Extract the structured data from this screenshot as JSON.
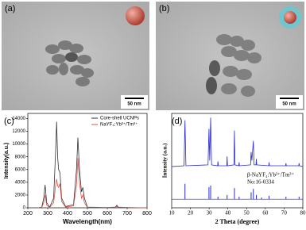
{
  "images": [
    {
      "label": "(a)",
      "scale_bar": "50 nm"
    },
    {
      "label": "(b)",
      "scale_bar": "50 nm"
    }
  ],
  "chart_data": [
    {
      "type": "line",
      "label": "(c)",
      "xlabel": "Wavelength(nm)",
      "ylabel": "Intensity(a.u.)",
      "x": [
        250,
        270,
        280,
        287,
        295,
        310,
        330,
        340,
        345,
        350,
        355,
        362,
        370,
        390,
        430,
        445,
        452,
        460,
        470,
        477,
        485,
        500,
        600,
        640,
        648,
        655,
        700,
        800
      ],
      "series": [
        {
          "name": "Core-shell UCNPs",
          "color": "#333333",
          "values": [
            0,
            100,
            1500,
            3600,
            800,
            100,
            1500,
            9000,
            13500,
            8000,
            6000,
            5500,
            1500,
            200,
            500,
            6000,
            11000,
            6000,
            2500,
            3200,
            1500,
            100,
            50,
            100,
            400,
            100,
            50,
            0
          ]
        },
        {
          "name": "NaYF₄:Yb³⁺/Tm³⁺",
          "color": "#e05050",
          "values": [
            0,
            50,
            800,
            2000,
            400,
            50,
            800,
            3500,
            4500,
            3500,
            3200,
            3800,
            1000,
            100,
            300,
            3500,
            7800,
            4000,
            1500,
            2000,
            800,
            50,
            30,
            50,
            200,
            50,
            30,
            0
          ]
        }
      ],
      "xlim": [
        200,
        800
      ],
      "xticks": [
        200,
        300,
        400,
        500,
        600,
        700,
        800
      ],
      "ylim": [
        0,
        14800
      ],
      "yticks": [
        0,
        2000,
        4000,
        6000,
        8000,
        10000,
        12000,
        14000
      ],
      "legend": "upper right"
    },
    {
      "type": "line",
      "label": "(d)",
      "xlabel": "2 Theta (degree)",
      "ylabel": "Intensity (a.u.)",
      "annotations": [
        "β-NaYF₄:Yb³⁺/Tm³⁺",
        "No:16-0334"
      ],
      "series": [
        {
          "color": "#2b2bd0",
          "x": [
            10,
            16.6,
            17.1,
            17.6,
            29.4,
            29.9,
            30.3,
            30.8,
            31.3,
            34.5,
            34.7,
            34.9,
            39.4,
            39.6,
            39.8,
            43.2,
            43.5,
            43.8,
            45.8,
            46,
            46.2,
            52.1,
            52.4,
            52.8,
            53.6,
            54,
            55,
            55.2,
            55.4,
            61.8,
            62,
            62.2,
            70.8,
            71,
            71.2,
            77.8,
            78,
            78.2,
            80
          ],
          "values": [
            38,
            39,
            92,
            39,
            40,
            82,
            45,
            95,
            40,
            39,
            44,
            39,
            39,
            50,
            39,
            40,
            80,
            40,
            39,
            43,
            39,
            40,
            55,
            45,
            68,
            40,
            40,
            47,
            40,
            39,
            43,
            39,
            39,
            42,
            39,
            39,
            42,
            39,
            38
          ]
        },
        {
          "color": "#2b2bd0",
          "style": "stem",
          "x": [
            17.1,
            29.9,
            30.8,
            34.7,
            39.6,
            43.5,
            46,
            52.4,
            53.6,
            55.2,
            58,
            62,
            71,
            78
          ],
          "values": [
            18,
            14,
            16,
            3,
            5,
            13,
            3,
            8,
            12,
            5,
            2,
            4,
            3,
            3
          ]
        }
      ],
      "xlim": [
        10,
        80
      ],
      "xticks": [
        10,
        20,
        30,
        40,
        50,
        60,
        70,
        80
      ],
      "ylim": [
        -10,
        100
      ]
    }
  ]
}
